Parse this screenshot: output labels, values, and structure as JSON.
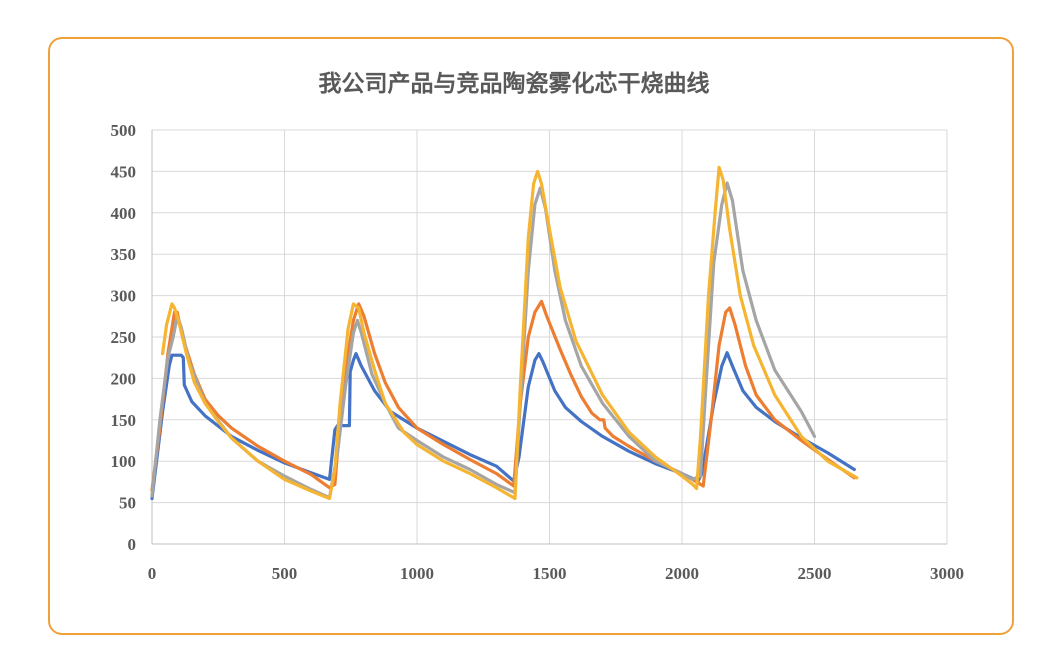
{
  "chart_data": {
    "type": "line",
    "title": "我公司产品与竞品陶瓷雾化芯干烧曲线",
    "xlabel": "",
    "ylabel": "",
    "xlim": [
      0,
      3000
    ],
    "ylim": [
      0,
      500
    ],
    "xticks": [
      0,
      500,
      1000,
      1500,
      2000,
      2500,
      3000
    ],
    "yticks": [
      0,
      50,
      100,
      150,
      200,
      250,
      300,
      350,
      400,
      450,
      500
    ],
    "grid": true,
    "legend": "none",
    "series": [
      {
        "color": "#4472c4",
        "points": [
          [
            0,
            55
          ],
          [
            40,
            160
          ],
          [
            65,
            215
          ],
          [
            75,
            228
          ],
          [
            110,
            228
          ],
          [
            118,
            225
          ],
          [
            122,
            192
          ],
          [
            150,
            172
          ],
          [
            200,
            155
          ],
          [
            300,
            130
          ],
          [
            400,
            113
          ],
          [
            500,
            98
          ],
          [
            600,
            86
          ],
          [
            670,
            78
          ],
          [
            690,
            138
          ],
          [
            700,
            143
          ],
          [
            745,
            143
          ],
          [
            748,
            208
          ],
          [
            760,
            222
          ],
          [
            770,
            230
          ],
          [
            790,
            215
          ],
          [
            840,
            185
          ],
          [
            900,
            160
          ],
          [
            1000,
            140
          ],
          [
            1100,
            124
          ],
          [
            1200,
            108
          ],
          [
            1300,
            94
          ],
          [
            1365,
            76
          ],
          [
            1385,
            105
          ],
          [
            1420,
            190
          ],
          [
            1445,
            222
          ],
          [
            1460,
            230
          ],
          [
            1475,
            220
          ],
          [
            1520,
            185
          ],
          [
            1560,
            165
          ],
          [
            1620,
            148
          ],
          [
            1700,
            130
          ],
          [
            1800,
            112
          ],
          [
            1900,
            97
          ],
          [
            2000,
            85
          ],
          [
            2060,
            76
          ],
          [
            2075,
            85
          ],
          [
            2120,
            170
          ],
          [
            2150,
            215
          ],
          [
            2170,
            231
          ],
          [
            2190,
            215
          ],
          [
            2230,
            185
          ],
          [
            2280,
            165
          ],
          [
            2350,
            148
          ],
          [
            2450,
            128
          ],
          [
            2550,
            110
          ],
          [
            2650,
            90
          ]
        ]
      },
      {
        "color": "#ed7d31",
        "points": [
          [
            0,
            65
          ],
          [
            30,
            140
          ],
          [
            60,
            230
          ],
          [
            85,
            280
          ],
          [
            95,
            280
          ],
          [
            115,
            250
          ],
          [
            160,
            205
          ],
          [
            200,
            175
          ],
          [
            250,
            155
          ],
          [
            300,
            140
          ],
          [
            400,
            118
          ],
          [
            500,
            100
          ],
          [
            600,
            84
          ],
          [
            670,
            68
          ],
          [
            690,
            72
          ],
          [
            720,
            190
          ],
          [
            760,
            270
          ],
          [
            780,
            290
          ],
          [
            800,
            275
          ],
          [
            840,
            230
          ],
          [
            880,
            195
          ],
          [
            930,
            165
          ],
          [
            1000,
            140
          ],
          [
            1100,
            120
          ],
          [
            1200,
            102
          ],
          [
            1300,
            85
          ],
          [
            1365,
            70
          ],
          [
            1390,
            170
          ],
          [
            1420,
            250
          ],
          [
            1445,
            280
          ],
          [
            1470,
            293
          ],
          [
            1490,
            275
          ],
          [
            1540,
            235
          ],
          [
            1580,
            205
          ],
          [
            1620,
            178
          ],
          [
            1660,
            158
          ],
          [
            1690,
            150
          ],
          [
            1705,
            150
          ],
          [
            1710,
            140
          ],
          [
            1740,
            130
          ],
          [
            1800,
            118
          ],
          [
            1900,
            100
          ],
          [
            2000,
            85
          ],
          [
            2060,
            74
          ],
          [
            2080,
            70
          ],
          [
            2110,
            150
          ],
          [
            2140,
            240
          ],
          [
            2165,
            280
          ],
          [
            2180,
            285
          ],
          [
            2200,
            265
          ],
          [
            2240,
            215
          ],
          [
            2280,
            180
          ],
          [
            2350,
            150
          ],
          [
            2450,
            125
          ],
          [
            2550,
            102
          ],
          [
            2650,
            80
          ]
        ]
      },
      {
        "color": "#a5a5a5",
        "points": [
          [
            0,
            58
          ],
          [
            30,
            150
          ],
          [
            60,
            225
          ],
          [
            80,
            250
          ],
          [
            95,
            275
          ],
          [
            110,
            262
          ],
          [
            140,
            220
          ],
          [
            200,
            170
          ],
          [
            300,
            128
          ],
          [
            400,
            100
          ],
          [
            500,
            82
          ],
          [
            600,
            66
          ],
          [
            670,
            56
          ],
          [
            700,
            110
          ],
          [
            730,
            190
          ],
          [
            760,
            255
          ],
          [
            775,
            270
          ],
          [
            790,
            255
          ],
          [
            830,
            205
          ],
          [
            880,
            170
          ],
          [
            930,
            140
          ],
          [
            1000,
            125
          ],
          [
            1100,
            105
          ],
          [
            1200,
            90
          ],
          [
            1300,
            72
          ],
          [
            1370,
            62
          ],
          [
            1390,
            170
          ],
          [
            1420,
            330
          ],
          [
            1445,
            410
          ],
          [
            1465,
            430
          ],
          [
            1485,
            405
          ],
          [
            1520,
            330
          ],
          [
            1560,
            270
          ],
          [
            1620,
            215
          ],
          [
            1700,
            170
          ],
          [
            1800,
            130
          ],
          [
            1900,
            100
          ],
          [
            2000,
            85
          ],
          [
            2040,
            78
          ],
          [
            2070,
            82
          ],
          [
            2090,
            190
          ],
          [
            2120,
            340
          ],
          [
            2150,
            410
          ],
          [
            2170,
            436
          ],
          [
            2190,
            415
          ],
          [
            2230,
            330
          ],
          [
            2280,
            270
          ],
          [
            2350,
            210
          ],
          [
            2450,
            160
          ],
          [
            2500,
            130
          ]
        ]
      },
      {
        "color": "#f5b532",
        "points": [
          [
            40,
            230
          ],
          [
            55,
            265
          ],
          [
            75,
            290
          ],
          [
            85,
            285
          ],
          [
            100,
            270
          ],
          [
            130,
            230
          ],
          [
            160,
            195
          ],
          [
            200,
            170
          ],
          [
            250,
            148
          ],
          [
            300,
            128
          ],
          [
            400,
            100
          ],
          [
            500,
            78
          ],
          [
            600,
            64
          ],
          [
            670,
            55
          ],
          [
            690,
            90
          ],
          [
            710,
            170
          ],
          [
            740,
            260
          ],
          [
            760,
            290
          ],
          [
            780,
            285
          ],
          [
            800,
            255
          ],
          [
            840,
            210
          ],
          [
            880,
            170
          ],
          [
            950,
            135
          ],
          [
            1000,
            120
          ],
          [
            1100,
            100
          ],
          [
            1200,
            85
          ],
          [
            1300,
            68
          ],
          [
            1370,
            55
          ],
          [
            1390,
            190
          ],
          [
            1420,
            370
          ],
          [
            1440,
            435
          ],
          [
            1455,
            450
          ],
          [
            1470,
            435
          ],
          [
            1500,
            380
          ],
          [
            1540,
            310
          ],
          [
            1600,
            245
          ],
          [
            1700,
            180
          ],
          [
            1800,
            135
          ],
          [
            1900,
            105
          ],
          [
            2000,
            82
          ],
          [
            2040,
            72
          ],
          [
            2055,
            67
          ],
          [
            2070,
            130
          ],
          [
            2100,
            300
          ],
          [
            2125,
            400
          ],
          [
            2140,
            455
          ],
          [
            2155,
            440
          ],
          [
            2180,
            380
          ],
          [
            2220,
            300
          ],
          [
            2270,
            240
          ],
          [
            2350,
            180
          ],
          [
            2450,
            130
          ],
          [
            2550,
            100
          ],
          [
            2660,
            80
          ]
        ]
      }
    ]
  }
}
